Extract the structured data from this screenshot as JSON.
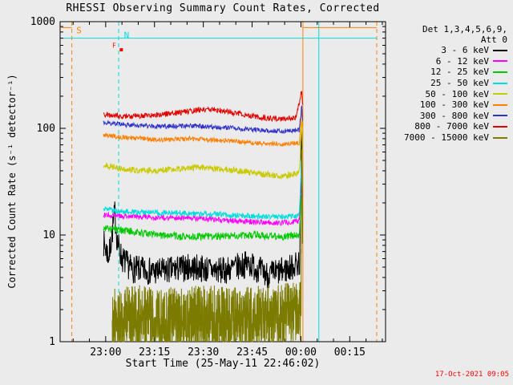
{
  "title": "RHESSI Observing Summary Count Rates, Corrected",
  "timestamp": "17-Oct-2021 09:05",
  "chart_data": {
    "type": "line",
    "title": "RHESSI Observing Summary Count Rates, Corrected",
    "xlabel": "Start Time (25-May-11 22:46:02)",
    "ylabel": "Corrected Count Rate (s⁻¹ detector⁻¹)",
    "x_range_minutes": [
      0,
      100
    ],
    "y_log_range": [
      1,
      1000
    ],
    "x_minor_start": 4,
    "x_minor_step": 5,
    "x_ticks": [
      {
        "t": 14,
        "label": "23:00"
      },
      {
        "t": 29,
        "label": "23:15"
      },
      {
        "t": 44,
        "label": "23:30"
      },
      {
        "t": 59,
        "label": "23:45"
      },
      {
        "t": 74,
        "label": "00:00"
      },
      {
        "t": 89,
        "label": "00:15"
      }
    ],
    "y_ticks": [
      {
        "v": 1,
        "label": "1"
      },
      {
        "v": 10,
        "label": "10"
      },
      {
        "v": 100,
        "label": "100"
      },
      {
        "v": 1000,
        "label": "1000"
      }
    ],
    "legend_header": [
      "Det 1,3,4,5,6,9,",
      "Att 0"
    ],
    "series": [
      {
        "name": "3 - 6 keV",
        "color": "#000000",
        "noise": 0.3,
        "step": 0.1,
        "points": [
          [
            13.3,
            8.5
          ],
          [
            15,
            6.2
          ],
          [
            16.8,
            16
          ],
          [
            17.6,
            8.5
          ],
          [
            19,
            6
          ],
          [
            22,
            4.8
          ],
          [
            30,
            4.5
          ],
          [
            40,
            5
          ],
          [
            50,
            4.6
          ],
          [
            58,
            5.4
          ],
          [
            64,
            4.2
          ],
          [
            70,
            4.8
          ],
          [
            73.6,
            5.5
          ],
          [
            74.25,
            95
          ],
          [
            74.5,
            30
          ]
        ]
      },
      {
        "name": "6 - 12 keV",
        "color": "#ff00ff",
        "noise": 0.06,
        "step": 0.12,
        "points": [
          [
            13.3,
            15.5
          ],
          [
            20,
            15
          ],
          [
            30,
            14.5
          ],
          [
            40,
            14.5
          ],
          [
            50,
            13.8
          ],
          [
            60,
            13.2
          ],
          [
            68,
            13
          ],
          [
            73.5,
            13.5
          ],
          [
            74.25,
            48
          ],
          [
            74.55,
            20
          ]
        ]
      },
      {
        "name": "12 - 25 keV",
        "color": "#00c800",
        "noise": 0.08,
        "step": 0.12,
        "points": [
          [
            13.3,
            11.5
          ],
          [
            20,
            11
          ],
          [
            30,
            10
          ],
          [
            40,
            9.6
          ],
          [
            50,
            9.8
          ],
          [
            60,
            10
          ],
          [
            68,
            9.6
          ],
          [
            73.5,
            10
          ],
          [
            74.25,
            26
          ],
          [
            74.55,
            14
          ]
        ]
      },
      {
        "name": "25 - 50 keV",
        "color": "#00dddd",
        "noise": 0.06,
        "step": 0.12,
        "points": [
          [
            13.3,
            17.5
          ],
          [
            20,
            16.5
          ],
          [
            30,
            16.2
          ],
          [
            40,
            16
          ],
          [
            50,
            15.5
          ],
          [
            60,
            15
          ],
          [
            68,
            14.8
          ],
          [
            73.5,
            15.2
          ],
          [
            74.25,
            55
          ],
          [
            74.55,
            25
          ]
        ]
      },
      {
        "name": "50 - 100 keV",
        "color": "#c9c900",
        "noise": 0.07,
        "step": 0.12,
        "points": [
          [
            13.3,
            46
          ],
          [
            18,
            42
          ],
          [
            25,
            40
          ],
          [
            33,
            41
          ],
          [
            42,
            43
          ],
          [
            48,
            42
          ],
          [
            55,
            40
          ],
          [
            62,
            37
          ],
          [
            68,
            36
          ],
          [
            73.5,
            38
          ],
          [
            74.25,
            120
          ],
          [
            74.55,
            50
          ]
        ]
      },
      {
        "name": "100 - 300 keV",
        "color": "#ff8000",
        "noise": 0.05,
        "step": 0.12,
        "points": [
          [
            13.3,
            86
          ],
          [
            20,
            82
          ],
          [
            30,
            78
          ],
          [
            40,
            80
          ],
          [
            50,
            77
          ],
          [
            60,
            73
          ],
          [
            68,
            71
          ],
          [
            73.5,
            73
          ],
          [
            74.3,
            160
          ],
          [
            74.55,
            90
          ]
        ]
      },
      {
        "name": "300 - 800 keV",
        "color": "#3333cc",
        "noise": 0.05,
        "step": 0.12,
        "points": [
          [
            13.3,
            113
          ],
          [
            20,
            108
          ],
          [
            30,
            104
          ],
          [
            40,
            106
          ],
          [
            50,
            102
          ],
          [
            60,
            97
          ],
          [
            68,
            94
          ],
          [
            73.5,
            96
          ],
          [
            74.3,
            170
          ],
          [
            74.55,
            110
          ]
        ]
      },
      {
        "name": "800 - 7000 keV",
        "color": "#e10000",
        "noise": 0.06,
        "step": 0.12,
        "points": [
          [
            13.3,
            135
          ],
          [
            20,
            130
          ],
          [
            28,
            132
          ],
          [
            36,
            140
          ],
          [
            42,
            148
          ],
          [
            47,
            150
          ],
          [
            52,
            142
          ],
          [
            58,
            132
          ],
          [
            64,
            124
          ],
          [
            69,
            122
          ],
          [
            72.5,
            128
          ],
          [
            74.3,
            230
          ],
          [
            74.55,
            150
          ]
        ]
      },
      {
        "name": "7000 - 15000 keV",
        "color": "#7b7b00",
        "noise": 0.7,
        "step": 0.05,
        "clamp_min": 1.0,
        "points": [
          [
            16,
            1.6
          ],
          [
            25,
            1.7
          ],
          [
            35,
            1.6
          ],
          [
            45,
            1.7
          ],
          [
            55,
            1.6
          ],
          [
            65,
            1.7
          ],
          [
            72,
            1.8
          ],
          [
            74,
            2
          ],
          [
            74.3,
            40
          ],
          [
            74.5,
            10
          ]
        ]
      }
    ],
    "annotations": {
      "h_lines": [
        {
          "v": 700,
          "t1": 0.8,
          "t2": 97.3,
          "color": "#00dddd"
        },
        {
          "v": 880,
          "t1": 0.3,
          "t2": 3.6,
          "color": "#ff8000"
        },
        {
          "v": 880,
          "t1": 74.6,
          "t2": 97.3,
          "color": "#ff8000"
        }
      ],
      "v_lines": [
        {
          "t": 3.6,
          "color": "#ff8000",
          "dash": true
        },
        {
          "t": 18.0,
          "color": "#00dddd",
          "dash": true
        },
        {
          "t": 74.6,
          "color": "#ff8000",
          "dash": false
        },
        {
          "t": 79.5,
          "color": "#00dddd",
          "dash": false
        },
        {
          "t": 97.3,
          "color": "#ff8000",
          "dash": true
        }
      ],
      "labels": [
        {
          "t": 5.0,
          "v": 780,
          "text": "S",
          "color": "#ff8000",
          "size": 11
        },
        {
          "t": 16.0,
          "v": 570,
          "text": "F",
          "color": "#ff0000",
          "size": 8
        },
        {
          "t": 19.6,
          "v": 700,
          "text": "N",
          "color": "#00dddd",
          "size": 11
        }
      ],
      "markers": [
        {
          "t": 18.8,
          "v": 545,
          "color": "#ff0000"
        }
      ]
    }
  }
}
